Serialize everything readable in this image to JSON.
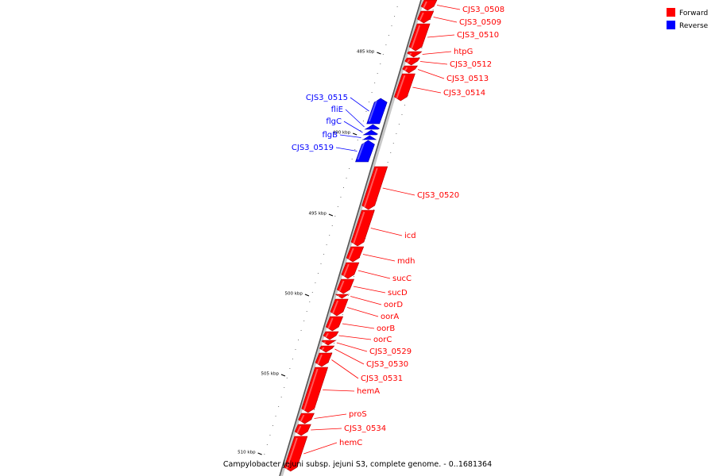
{
  "caption": "Campylobacter jejuni subsp. jejuni S3, complete genome. - 0..1681364",
  "legend": [
    {
      "label": "Forward",
      "color": "#ff0000"
    },
    {
      "label": "Reverse",
      "color": "#0000ff"
    }
  ],
  "scale_ticks": [
    {
      "label": "485 kbp",
      "kbp": 485
    },
    {
      "label": "490 kbp",
      "kbp": 490
    },
    {
      "label": "495 kbp",
      "kbp": 495
    },
    {
      "label": "500 kbp",
      "kbp": 500
    },
    {
      "label": "505 kbp",
      "kbp": 505
    },
    {
      "label": "510 kbp",
      "kbp": 510
    }
  ],
  "genes": [
    {
      "name": "CJS3_0508",
      "strand": "forward"
    },
    {
      "name": "CJS3_0509",
      "strand": "forward"
    },
    {
      "name": "CJS3_0510",
      "strand": "forward"
    },
    {
      "name": "htpG",
      "strand": "forward"
    },
    {
      "name": "CJS3_0512",
      "strand": "forward"
    },
    {
      "name": "CJS3_0513",
      "strand": "forward"
    },
    {
      "name": "CJS3_0514",
      "strand": "forward"
    },
    {
      "name": "CJS3_0515",
      "strand": "reverse"
    },
    {
      "name": "fliE",
      "strand": "reverse"
    },
    {
      "name": "flgC",
      "strand": "reverse"
    },
    {
      "name": "flgB",
      "strand": "reverse"
    },
    {
      "name": "CJS3_0519",
      "strand": "reverse"
    },
    {
      "name": "CJS3_0520",
      "strand": "forward"
    },
    {
      "name": "icd",
      "strand": "forward"
    },
    {
      "name": "mdh",
      "strand": "forward"
    },
    {
      "name": "sucC",
      "strand": "forward"
    },
    {
      "name": "sucD",
      "strand": "forward"
    },
    {
      "name": "oorD",
      "strand": "forward"
    },
    {
      "name": "oorA",
      "strand": "forward"
    },
    {
      "name": "oorB",
      "strand": "forward"
    },
    {
      "name": "oorC",
      "strand": "forward"
    },
    {
      "name": "CJS3_0529",
      "strand": "forward"
    },
    {
      "name": "CJS3_0530",
      "strand": "forward"
    },
    {
      "name": "CJS3_0531",
      "strand": "forward"
    },
    {
      "name": "hemA",
      "strand": "forward"
    },
    {
      "name": "proS",
      "strand": "forward"
    },
    {
      "name": "CJS3_0534",
      "strand": "forward"
    },
    {
      "name": "hemC",
      "strand": "forward"
    }
  ]
}
